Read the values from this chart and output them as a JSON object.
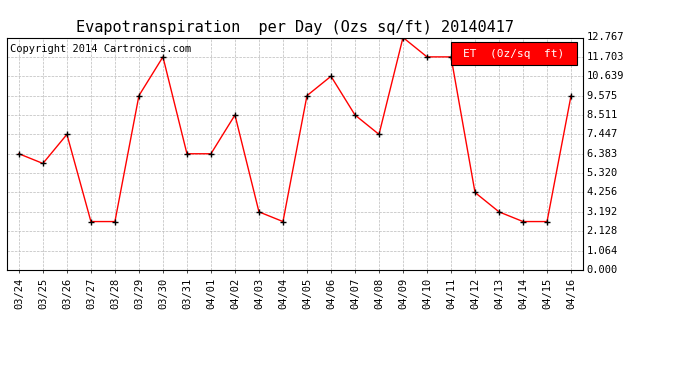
{
  "title": "Evapotranspiration  per Day (Ozs sq/ft) 20140417",
  "copyright": "Copyright 2014 Cartronics.com",
  "legend_label": "ET  (0z/sq  ft)",
  "dates": [
    "03/24",
    "03/25",
    "03/26",
    "03/27",
    "03/28",
    "03/29",
    "03/30",
    "03/31",
    "04/01",
    "04/02",
    "04/03",
    "04/04",
    "04/05",
    "04/06",
    "04/07",
    "04/08",
    "04/09",
    "04/10",
    "04/11",
    "04/12",
    "04/13",
    "04/14",
    "04/15",
    "04/16"
  ],
  "values": [
    6.383,
    5.851,
    7.447,
    2.66,
    2.66,
    9.575,
    11.703,
    6.383,
    6.383,
    8.511,
    3.192,
    2.66,
    9.575,
    10.639,
    8.511,
    7.447,
    12.767,
    11.703,
    11.703,
    4.256,
    3.192,
    2.66,
    2.66,
    9.575
  ],
  "y_ticks": [
    0.0,
    1.064,
    2.128,
    3.192,
    4.256,
    5.32,
    6.383,
    7.447,
    8.511,
    9.575,
    10.639,
    11.703,
    12.767
  ],
  "line_color": "red",
  "marker_color": "black",
  "grid_color": "#bbbbbb",
  "bg_color": "white",
  "legend_bg": "red",
  "legend_text_color": "white",
  "title_fontsize": 11,
  "copyright_fontsize": 7.5,
  "tick_fontsize": 7.5,
  "legend_fontsize": 8
}
